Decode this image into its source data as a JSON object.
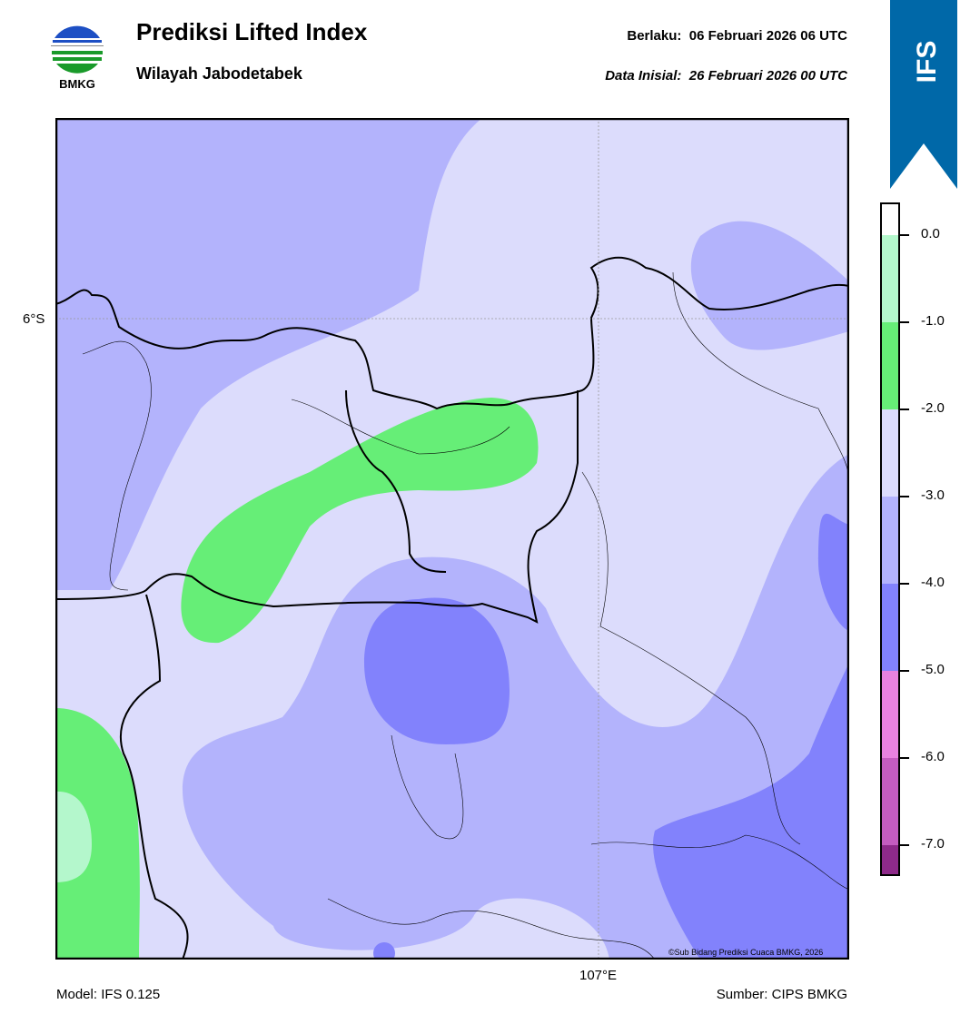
{
  "header": {
    "logo_text": "BMKG",
    "title": "Prediksi Lifted Index",
    "subtitle": "Wilayah Jabodetabek",
    "valid_label": "Berlaku:",
    "valid_value": "06 Februari 2026 06 UTC",
    "init_label": "Data Inisial:",
    "init_value": "26 Februari 2026 00 UTC",
    "model_badge": "IFS"
  },
  "map": {
    "lat_label": "6°S",
    "lon_label": "107°E",
    "copyright": "©Sub Bidang Prediksi Cuaca BMKG, 2026"
  },
  "colorbar": {
    "ticks": [
      "0.0",
      "-1.0",
      "-2.0",
      "-3.0",
      "-4.0",
      "-5.0",
      "-6.0",
      "-7.0"
    ],
    "colors": [
      "#ffffff",
      "#b4f7cc",
      "#66ee77",
      "#dcdcfc",
      "#b3b3fc",
      "#8282fc",
      "#e882e0",
      "#c45cc0",
      "#8e2a8a"
    ]
  },
  "footer": {
    "model": "Model: IFS 0.125",
    "source": "Sumber: CIPS BMKG"
  }
}
